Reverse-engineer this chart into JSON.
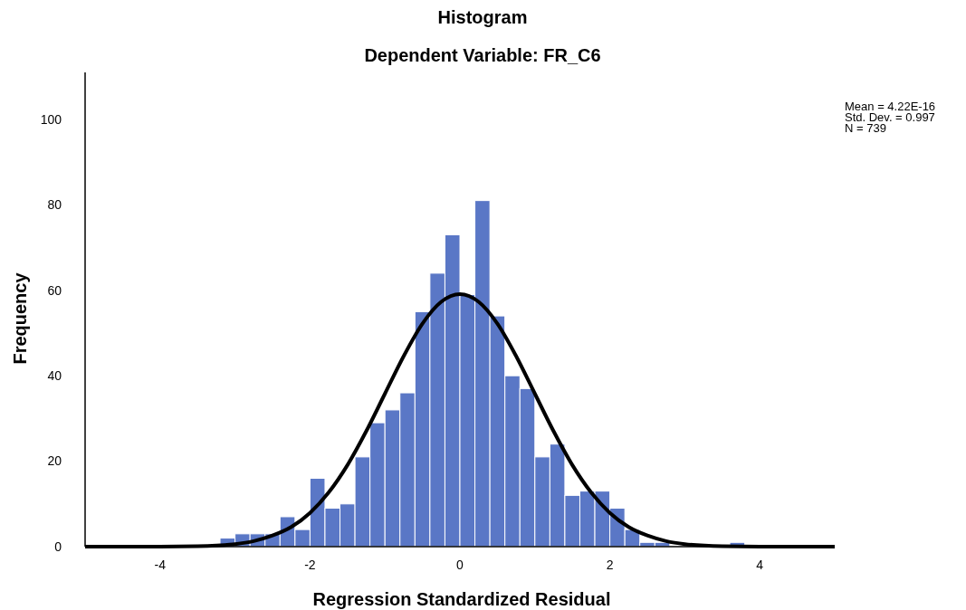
{
  "chart_data": {
    "type": "histogram",
    "title": "Histogram",
    "subtitle": "Dependent Variable: FR_C6",
    "xlabel": "Regression Standardized Residual",
    "ylabel": "Frequency",
    "bins": [
      -3.2,
      -3.0,
      -2.8,
      -2.6,
      -2.4,
      -2.2,
      -2.0,
      -1.8,
      -1.6,
      -1.4,
      -1.2,
      -1.0,
      -0.8,
      -0.6,
      -0.4,
      -0.2,
      0,
      0.2,
      0.4,
      0.6,
      0.8,
      1.0,
      1.2,
      1.4,
      1.6,
      1.8,
      2.0,
      2.2,
      2.4,
      2.6,
      2.8,
      3.0,
      3.2,
      3.4,
      3.6,
      3.8
    ],
    "values": [
      2,
      3,
      3,
      3,
      7,
      4,
      16,
      9,
      10,
      21,
      29,
      32,
      36,
      55,
      64,
      73,
      59,
      81,
      54,
      40,
      37,
      21,
      24,
      12,
      13,
      13,
      9,
      4,
      1,
      1,
      0,
      0,
      0,
      0,
      1
    ],
    "color": "#5a77c6",
    "series": [
      {
        "type": "line",
        "color": "#000000",
        "x": [
          -5,
          -4.5,
          -4,
          -3.5,
          -3,
          -2.75,
          -2.5,
          -2.25,
          -2,
          -1.75,
          -1.5,
          -1.25,
          -1,
          -0.75,
          -0.5,
          -0.25,
          0,
          0.25,
          0.5,
          0.75,
          1,
          1.25,
          1.5,
          1.75,
          2,
          2.25,
          2.5,
          2.75,
          3,
          3.5,
          4,
          4.5,
          5
        ],
        "values": [
          0,
          0,
          0,
          0.1,
          0.6,
          1.3,
          2.6,
          4.6,
          7.9,
          12.7,
          19.1,
          27,
          35.8,
          44.6,
          52.2,
          57.3,
          59.1,
          57.3,
          52.2,
          44.6,
          35.8,
          27,
          19.1,
          12.7,
          7.9,
          4.6,
          2.6,
          1.3,
          0.6,
          0.1,
          0,
          0,
          0
        ]
      }
    ],
    "xlim": [
      -5,
      5
    ],
    "xticks": [
      -4,
      -2,
      0,
      2,
      4
    ],
    "ylim": [
      0,
      111
    ],
    "yticks": [
      0,
      20,
      40,
      60,
      80,
      100
    ],
    "grid": false,
    "annotations": [
      "Mean = 4.22E-16",
      "Std. Dev. = 0.997",
      "N = 739"
    ]
  }
}
